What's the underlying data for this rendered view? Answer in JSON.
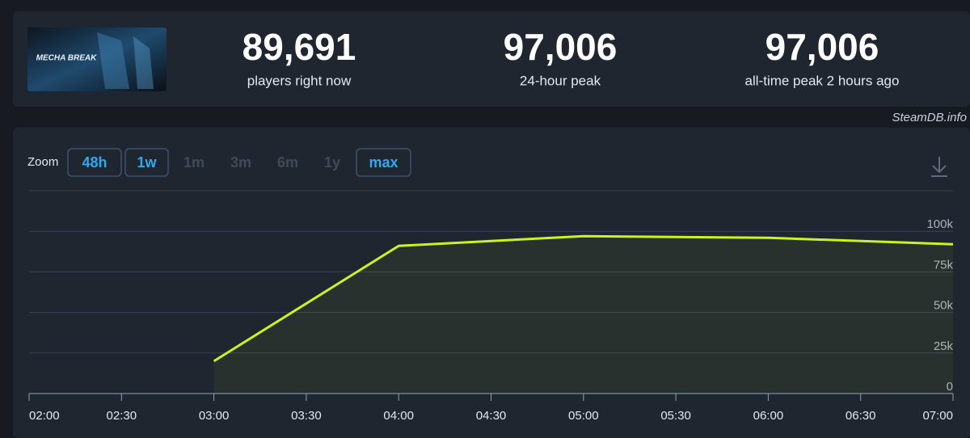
{
  "header": {
    "logo_text": "MECHA BREAK",
    "stats": [
      {
        "value": "89,691",
        "label": "players right now"
      },
      {
        "value": "97,006",
        "label": "24-hour peak"
      },
      {
        "value": "97,006",
        "label": "all-time peak 2 hours ago"
      }
    ]
  },
  "watermark": "SteamDB.info",
  "zoom": {
    "label": "Zoom",
    "options": [
      {
        "text": "48h",
        "active": true
      },
      {
        "text": "1w",
        "active": true
      },
      {
        "text": "1m",
        "active": false
      },
      {
        "text": "3m",
        "active": false
      },
      {
        "text": "6m",
        "active": false
      },
      {
        "text": "1y",
        "active": false
      },
      {
        "text": "max",
        "active": true
      }
    ]
  },
  "chart_data": {
    "type": "line",
    "x": [
      "03:00",
      "04:00",
      "05:00",
      "06:00",
      "07:00"
    ],
    "values": [
      20000,
      91000,
      97006,
      96000,
      92000
    ],
    "color": "#c8f51e",
    "xlim": [
      "02:00",
      "07:00"
    ],
    "xticks": [
      "02:00",
      "02:30",
      "03:00",
      "03:30",
      "04:00",
      "04:30",
      "05:00",
      "05:30",
      "06:00",
      "06:30",
      "07:00"
    ],
    "ylim": [
      0,
      125000
    ],
    "yticks": [
      0,
      {
        "value": 25000,
        "label": "25k"
      },
      {
        "value": 50000,
        "label": "50k"
      },
      {
        "value": 75000,
        "label": "75k"
      },
      {
        "value": 100000,
        "label": "100k"
      }
    ],
    "grid": true
  }
}
